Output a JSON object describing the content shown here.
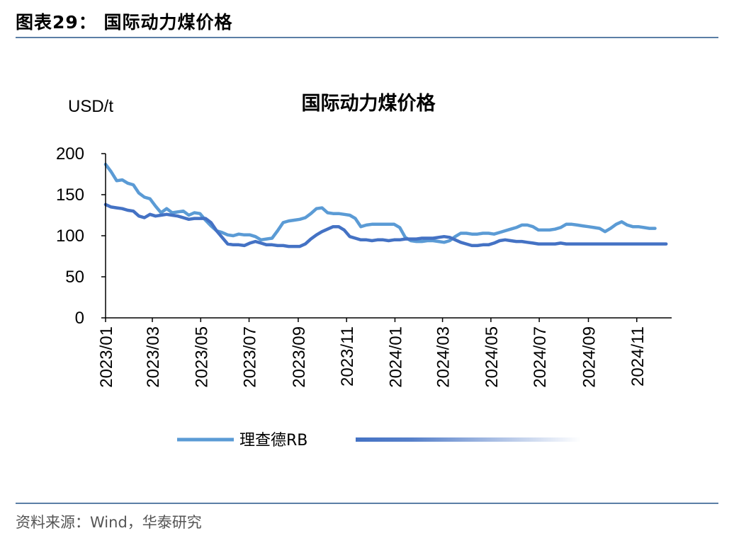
{
  "figure": {
    "label": "图表29：  国际动力煤价格",
    "source": "资料来源：Wind，华泰研究"
  },
  "chart_data": {
    "type": "line",
    "title": "国际动力煤价格",
    "unit": "USD/t",
    "ylim": [
      0,
      200
    ],
    "yticks": [
      0,
      50,
      100,
      150,
      200
    ],
    "xlim": [
      "2023-01-01",
      "2024-12-15"
    ],
    "xtick_labels": [
      "2023/01",
      "2023/03",
      "2023/05",
      "2023/07",
      "2023/09",
      "2023/11",
      "2024/01",
      "2024/03",
      "2024/05",
      "2024/07",
      "2024/09",
      "2024/11"
    ],
    "legend_position": "bottom",
    "grid": false,
    "series": [
      {
        "name": "理查德RB",
        "color": "#5b9bd5",
        "points": [
          [
            "2023-01-01",
            187
          ],
          [
            "2023-01-08",
            178
          ],
          [
            "2023-01-15",
            167
          ],
          [
            "2023-01-22",
            168
          ],
          [
            "2023-01-29",
            164
          ],
          [
            "2023-02-05",
            162
          ],
          [
            "2023-02-12",
            152
          ],
          [
            "2023-02-19",
            147
          ],
          [
            "2023-02-26",
            145
          ],
          [
            "2023-03-05",
            136
          ],
          [
            "2023-03-12",
            128
          ],
          [
            "2023-03-19",
            133
          ],
          [
            "2023-03-26",
            128
          ],
          [
            "2023-04-02",
            129
          ],
          [
            "2023-04-09",
            130
          ],
          [
            "2023-04-16",
            125
          ],
          [
            "2023-04-23",
            128
          ],
          [
            "2023-04-30",
            127
          ],
          [
            "2023-05-07",
            119
          ],
          [
            "2023-05-14",
            112
          ],
          [
            "2023-05-21",
            106
          ],
          [
            "2023-05-28",
            104
          ],
          [
            "2023-06-04",
            101
          ],
          [
            "2023-06-11",
            100
          ],
          [
            "2023-06-18",
            102
          ],
          [
            "2023-06-25",
            101
          ],
          [
            "2023-07-02",
            101
          ],
          [
            "2023-07-09",
            99
          ],
          [
            "2023-07-16",
            95
          ],
          [
            "2023-07-23",
            96
          ],
          [
            "2023-07-30",
            97
          ],
          [
            "2023-08-06",
            106
          ],
          [
            "2023-08-13",
            116
          ],
          [
            "2023-08-20",
            118
          ],
          [
            "2023-08-27",
            119
          ],
          [
            "2023-09-03",
            120
          ],
          [
            "2023-09-10",
            122
          ],
          [
            "2023-09-17",
            127
          ],
          [
            "2023-09-24",
            133
          ],
          [
            "2023-10-01",
            134
          ],
          [
            "2023-10-08",
            128
          ],
          [
            "2023-10-15",
            127
          ],
          [
            "2023-10-22",
            127
          ],
          [
            "2023-10-29",
            126
          ],
          [
            "2023-11-05",
            125
          ],
          [
            "2023-11-12",
            121
          ],
          [
            "2023-11-19",
            111
          ],
          [
            "2023-11-26",
            113
          ],
          [
            "2023-12-03",
            114
          ],
          [
            "2023-12-10",
            114
          ],
          [
            "2023-12-17",
            114
          ],
          [
            "2023-12-24",
            114
          ],
          [
            "2023-12-31",
            114
          ],
          [
            "2024-01-07",
            110
          ],
          [
            "2024-01-14",
            98
          ],
          [
            "2024-01-21",
            94
          ],
          [
            "2024-01-28",
            93
          ],
          [
            "2024-02-04",
            93
          ],
          [
            "2024-02-11",
            94
          ],
          [
            "2024-02-18",
            94
          ],
          [
            "2024-02-25",
            93
          ],
          [
            "2024-03-03",
            92
          ],
          [
            "2024-03-10",
            94
          ],
          [
            "2024-03-17",
            99
          ],
          [
            "2024-03-24",
            103
          ],
          [
            "2024-03-31",
            103
          ],
          [
            "2024-04-07",
            102
          ],
          [
            "2024-04-14",
            102
          ],
          [
            "2024-04-21",
            103
          ],
          [
            "2024-04-28",
            103
          ],
          [
            "2024-05-05",
            102
          ],
          [
            "2024-05-12",
            104
          ],
          [
            "2024-05-19",
            106
          ],
          [
            "2024-05-26",
            108
          ],
          [
            "2024-06-02",
            110
          ],
          [
            "2024-06-09",
            113
          ],
          [
            "2024-06-16",
            113
          ],
          [
            "2024-06-23",
            111
          ],
          [
            "2024-06-30",
            107
          ],
          [
            "2024-07-07",
            107
          ],
          [
            "2024-07-14",
            107
          ],
          [
            "2024-07-21",
            108
          ],
          [
            "2024-07-28",
            110
          ],
          [
            "2024-08-04",
            114
          ],
          [
            "2024-08-11",
            114
          ],
          [
            "2024-08-18",
            113
          ],
          [
            "2024-08-25",
            112
          ],
          [
            "2024-09-01",
            111
          ],
          [
            "2024-09-08",
            110
          ],
          [
            "2024-09-15",
            109
          ],
          [
            "2024-09-22",
            105
          ],
          [
            "2024-09-29",
            109
          ],
          [
            "2024-10-06",
            114
          ],
          [
            "2024-10-13",
            117
          ],
          [
            "2024-10-20",
            113
          ],
          [
            "2024-10-27",
            111
          ],
          [
            "2024-11-03",
            111
          ],
          [
            "2024-11-10",
            110
          ],
          [
            "2024-11-17",
            109
          ],
          [
            "2024-11-24",
            109
          ]
        ]
      },
      {
        "name": "",
        "color": "#4472c4",
        "points": [
          [
            "2023-01-01",
            138
          ],
          [
            "2023-01-08",
            135
          ],
          [
            "2023-01-15",
            134
          ],
          [
            "2023-01-22",
            133
          ],
          [
            "2023-01-29",
            131
          ],
          [
            "2023-02-05",
            130
          ],
          [
            "2023-02-12",
            124
          ],
          [
            "2023-02-19",
            122
          ],
          [
            "2023-02-26",
            126
          ],
          [
            "2023-03-05",
            124
          ],
          [
            "2023-03-12",
            125
          ],
          [
            "2023-03-19",
            126
          ],
          [
            "2023-03-26",
            125
          ],
          [
            "2023-04-02",
            124
          ],
          [
            "2023-04-09",
            122
          ],
          [
            "2023-04-16",
            120
          ],
          [
            "2023-04-23",
            121
          ],
          [
            "2023-04-30",
            121
          ],
          [
            "2023-05-07",
            121
          ],
          [
            "2023-05-14",
            116
          ],
          [
            "2023-05-21",
            106
          ],
          [
            "2023-05-28",
            98
          ],
          [
            "2023-06-04",
            90
          ],
          [
            "2023-06-11",
            89
          ],
          [
            "2023-06-18",
            89
          ],
          [
            "2023-06-25",
            88
          ],
          [
            "2023-07-02",
            91
          ],
          [
            "2023-07-09",
            93
          ],
          [
            "2023-07-16",
            91
          ],
          [
            "2023-07-23",
            89
          ],
          [
            "2023-07-30",
            89
          ],
          [
            "2023-08-06",
            88
          ],
          [
            "2023-08-13",
            88
          ],
          [
            "2023-08-20",
            87
          ],
          [
            "2023-08-27",
            87
          ],
          [
            "2023-09-03",
            87
          ],
          [
            "2023-09-10",
            90
          ],
          [
            "2023-09-17",
            96
          ],
          [
            "2023-09-24",
            101
          ],
          [
            "2023-10-01",
            105
          ],
          [
            "2023-10-08",
            108
          ],
          [
            "2023-10-15",
            111
          ],
          [
            "2023-10-22",
            111
          ],
          [
            "2023-10-29",
            107
          ],
          [
            "2023-11-05",
            99
          ],
          [
            "2023-11-12",
            97
          ],
          [
            "2023-11-19",
            95
          ],
          [
            "2023-11-26",
            95
          ],
          [
            "2023-12-03",
            94
          ],
          [
            "2023-12-10",
            95
          ],
          [
            "2023-12-17",
            95
          ],
          [
            "2023-12-24",
            94
          ],
          [
            "2023-12-31",
            95
          ],
          [
            "2024-01-07",
            95
          ],
          [
            "2024-01-14",
            96
          ],
          [
            "2024-01-21",
            96
          ],
          [
            "2024-01-28",
            96
          ],
          [
            "2024-02-04",
            97
          ],
          [
            "2024-02-11",
            97
          ],
          [
            "2024-02-18",
            97
          ],
          [
            "2024-02-25",
            98
          ],
          [
            "2024-03-03",
            99
          ],
          [
            "2024-03-10",
            98
          ],
          [
            "2024-03-17",
            95
          ],
          [
            "2024-03-24",
            92
          ],
          [
            "2024-03-31",
            90
          ],
          [
            "2024-04-07",
            88
          ],
          [
            "2024-04-14",
            88
          ],
          [
            "2024-04-21",
            89
          ],
          [
            "2024-04-28",
            89
          ],
          [
            "2024-05-05",
            91
          ],
          [
            "2024-05-12",
            94
          ],
          [
            "2024-05-19",
            95
          ],
          [
            "2024-05-26",
            94
          ],
          [
            "2024-06-02",
            93
          ],
          [
            "2024-06-09",
            93
          ],
          [
            "2024-06-16",
            92
          ],
          [
            "2024-06-23",
            91
          ],
          [
            "2024-06-30",
            90
          ],
          [
            "2024-07-07",
            90
          ],
          [
            "2024-07-14",
            90
          ],
          [
            "2024-07-21",
            90
          ],
          [
            "2024-07-28",
            91
          ],
          [
            "2024-08-04",
            90
          ],
          [
            "2024-08-11",
            90
          ],
          [
            "2024-08-18",
            90
          ],
          [
            "2024-08-25",
            90
          ],
          [
            "2024-09-01",
            90
          ],
          [
            "2024-09-08",
            90
          ],
          [
            "2024-09-15",
            90
          ],
          [
            "2024-09-22",
            90
          ],
          [
            "2024-09-29",
            90
          ],
          [
            "2024-10-06",
            90
          ],
          [
            "2024-10-13",
            90
          ],
          [
            "2024-10-20",
            90
          ],
          [
            "2024-10-27",
            90
          ],
          [
            "2024-11-03",
            90
          ],
          [
            "2024-11-10",
            90
          ],
          [
            "2024-11-17",
            90
          ],
          [
            "2024-11-24",
            90
          ],
          [
            "2024-12-01",
            90
          ],
          [
            "2024-12-08",
            90
          ]
        ]
      }
    ]
  }
}
